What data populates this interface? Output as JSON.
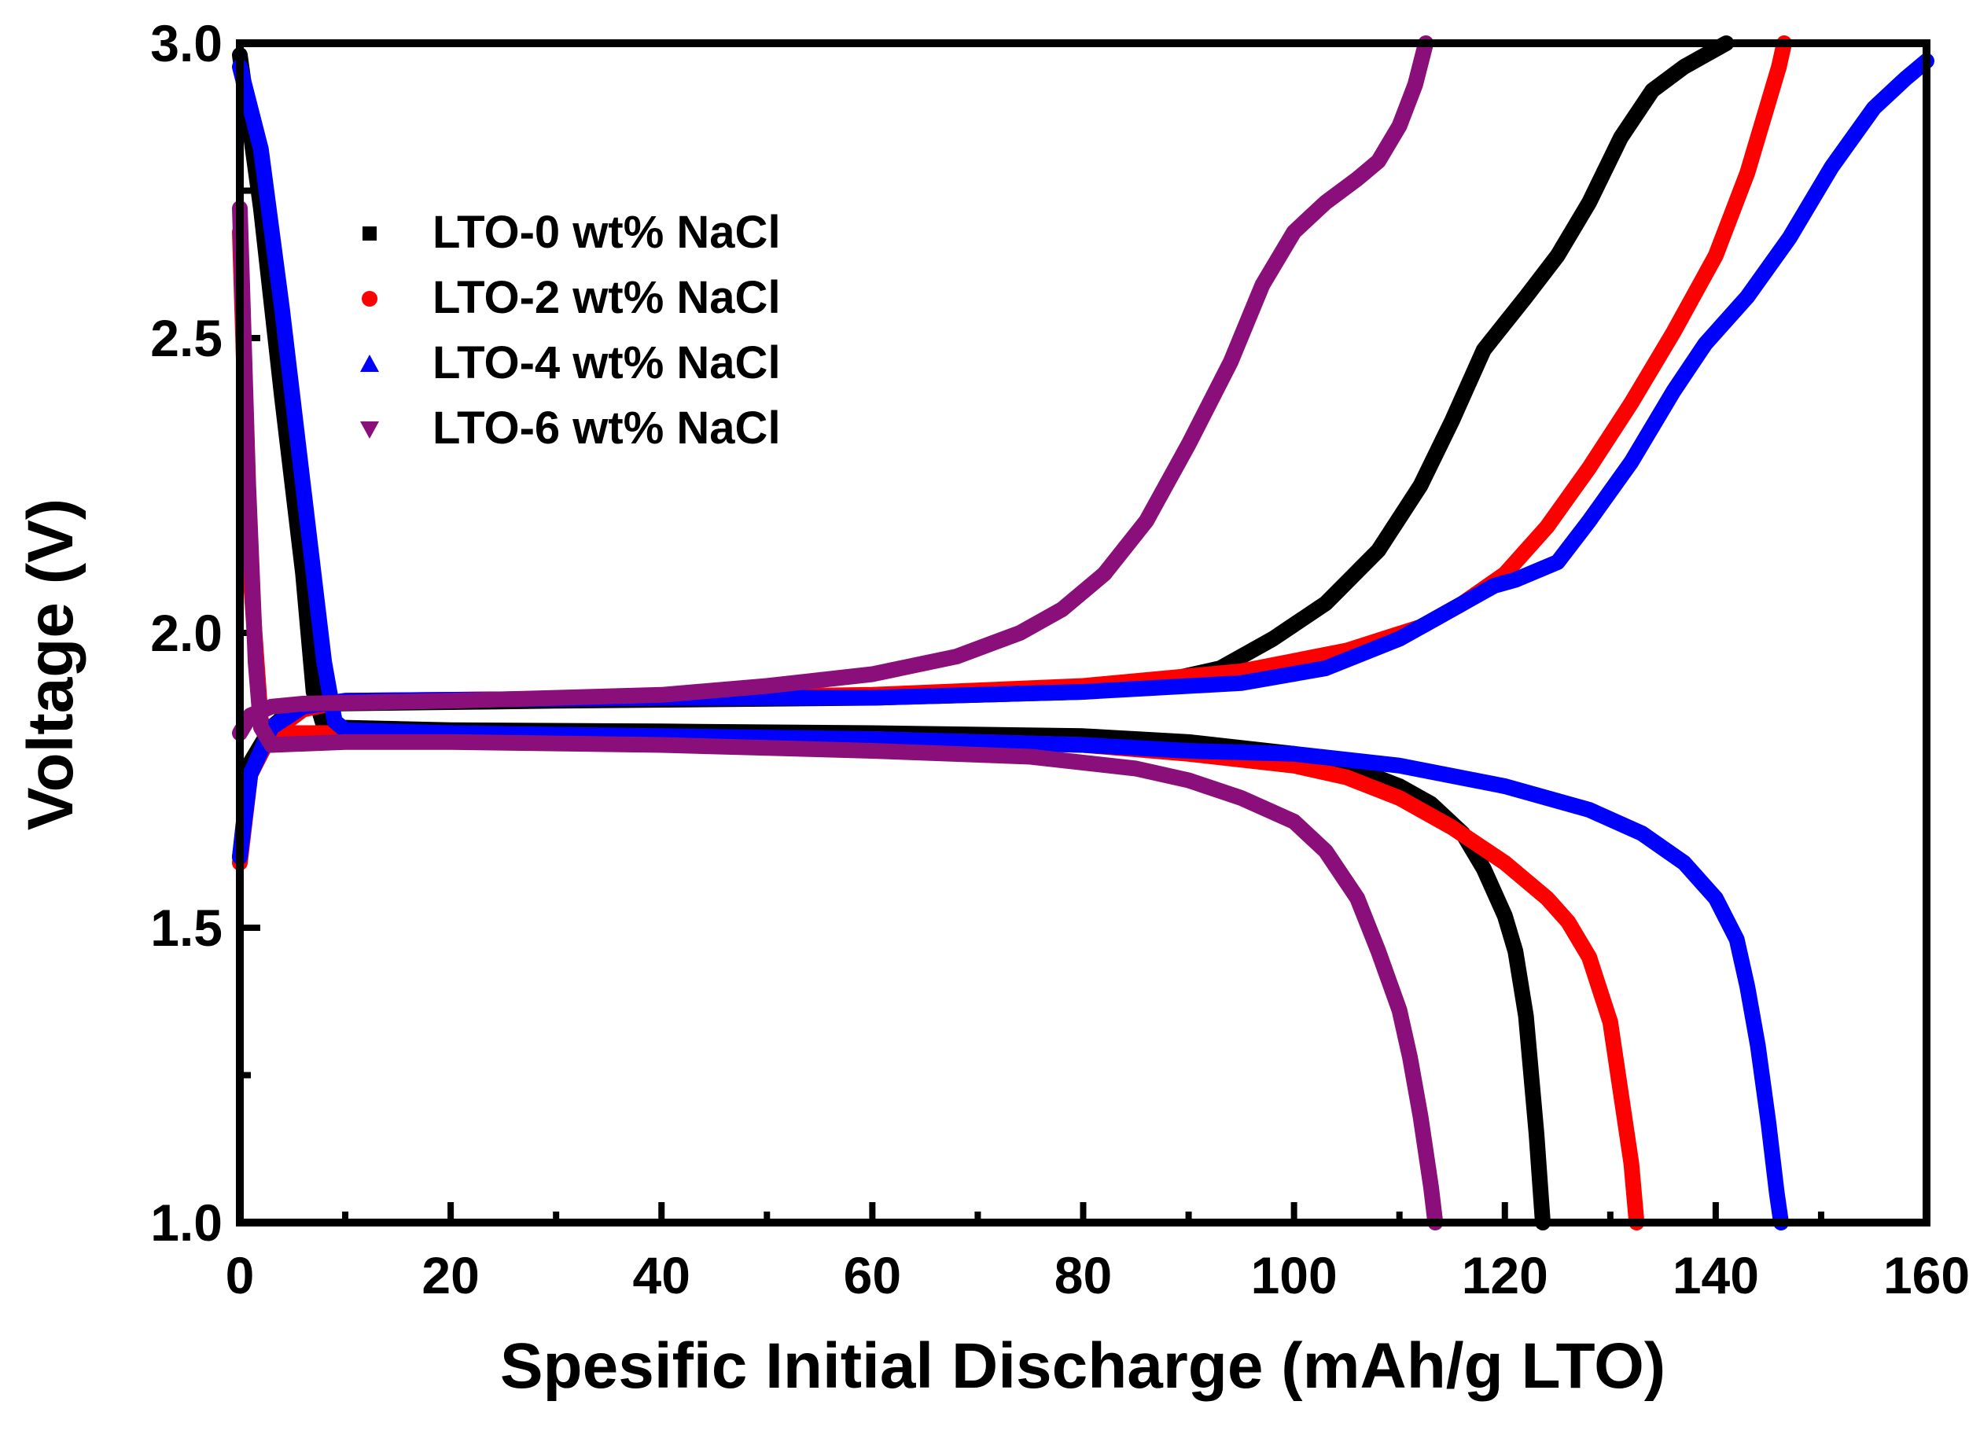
{
  "chart_data": {
    "type": "line",
    "xlabel": "Spesific Initial Discharge (mAh/g LTO)",
    "ylabel": "Voltage (V)",
    "xlim": [
      0,
      160
    ],
    "ylim": [
      1.0,
      3.0
    ],
    "x_ticks": [
      "0",
      "20",
      "40",
      "60",
      "80",
      "100",
      "120",
      "140",
      "160"
    ],
    "y_ticks": [
      "1.0",
      "1.5",
      "2.0",
      "2.5",
      "3.0"
    ],
    "legend_position": "top-left",
    "series": [
      {
        "name": "LTO-0 wt% NaCl",
        "color": "#000000",
        "marker": "square",
        "discharge": [
          [
            0,
            2.98
          ],
          [
            2,
            2.72
          ],
          [
            4,
            2.4
          ],
          [
            6,
            2.1
          ],
          [
            7,
            1.9
          ],
          [
            8,
            1.84
          ],
          [
            20,
            1.835
          ],
          [
            40,
            1.833
          ],
          [
            60,
            1.83
          ],
          [
            80,
            1.825
          ],
          [
            90,
            1.815
          ],
          [
            100,
            1.795
          ],
          [
            105,
            1.775
          ],
          [
            110,
            1.74
          ],
          [
            113,
            1.71
          ],
          [
            116,
            1.66
          ],
          [
            118,
            1.6
          ],
          [
            120,
            1.52
          ],
          [
            121,
            1.46
          ],
          [
            122,
            1.35
          ],
          [
            123,
            1.15
          ],
          [
            123.6,
            1.0
          ]
        ],
        "charge": [
          [
            0,
            1.62
          ],
          [
            1,
            1.78
          ],
          [
            3,
            1.84
          ],
          [
            5,
            1.87
          ],
          [
            8,
            1.88
          ],
          [
            30,
            1.885
          ],
          [
            60,
            1.89
          ],
          [
            80,
            1.9
          ],
          [
            88,
            1.92
          ],
          [
            93,
            1.94
          ],
          [
            98,
            1.99
          ],
          [
            103,
            2.05
          ],
          [
            108,
            2.14
          ],
          [
            112,
            2.25
          ],
          [
            115,
            2.36
          ],
          [
            118,
            2.48
          ],
          [
            122,
            2.57
          ],
          [
            125,
            2.64
          ],
          [
            128,
            2.73
          ],
          [
            131,
            2.84
          ],
          [
            134,
            2.92
          ],
          [
            137,
            2.96
          ],
          [
            140,
            2.99
          ],
          [
            141,
            3.0
          ]
        ]
      },
      {
        "name": "LTO-2 wt% NaCl",
        "color": "#ff0000",
        "marker": "circle",
        "discharge": [
          [
            0,
            2.68
          ],
          [
            1,
            2.1
          ],
          [
            2,
            1.85
          ],
          [
            3,
            1.83
          ],
          [
            10,
            1.83
          ],
          [
            30,
            1.825
          ],
          [
            60,
            1.82
          ],
          [
            80,
            1.81
          ],
          [
            90,
            1.795
          ],
          [
            100,
            1.775
          ],
          [
            105,
            1.755
          ],
          [
            110,
            1.72
          ],
          [
            115,
            1.67
          ],
          [
            120,
            1.61
          ],
          [
            124,
            1.55
          ],
          [
            126,
            1.51
          ],
          [
            128,
            1.45
          ],
          [
            130,
            1.34
          ],
          [
            131,
            1.22
          ],
          [
            132,
            1.1
          ],
          [
            132.5,
            1.0
          ]
        ],
        "charge": [
          [
            0,
            1.61
          ],
          [
            1,
            1.76
          ],
          [
            3,
            1.83
          ],
          [
            6,
            1.87
          ],
          [
            10,
            1.885
          ],
          [
            40,
            1.89
          ],
          [
            60,
            1.895
          ],
          [
            80,
            1.91
          ],
          [
            95,
            1.935
          ],
          [
            105,
            1.97
          ],
          [
            112,
            2.01
          ],
          [
            116,
            2.05
          ],
          [
            120,
            2.1
          ],
          [
            124,
            2.18
          ],
          [
            128,
            2.28
          ],
          [
            132,
            2.39
          ],
          [
            136,
            2.51
          ],
          [
            140,
            2.64
          ],
          [
            143,
            2.78
          ],
          [
            145,
            2.9
          ],
          [
            146,
            2.96
          ],
          [
            146.5,
            3.0
          ]
        ]
      },
      {
        "name": "LTO-4 wt% NaCl",
        "color": "#0000ff",
        "marker": "triangle-up",
        "discharge": [
          [
            0,
            2.96
          ],
          [
            2,
            2.82
          ],
          [
            4,
            2.55
          ],
          [
            6,
            2.25
          ],
          [
            8,
            1.95
          ],
          [
            9,
            1.85
          ],
          [
            10,
            1.835
          ],
          [
            20,
            1.83
          ],
          [
            40,
            1.825
          ],
          [
            60,
            1.82
          ],
          [
            80,
            1.81
          ],
          [
            90,
            1.8
          ],
          [
            100,
            1.795
          ],
          [
            110,
            1.775
          ],
          [
            120,
            1.74
          ],
          [
            128,
            1.7
          ],
          [
            133,
            1.66
          ],
          [
            137,
            1.61
          ],
          [
            140,
            1.55
          ],
          [
            142,
            1.48
          ],
          [
            143,
            1.4
          ],
          [
            144,
            1.3
          ],
          [
            145,
            1.17
          ],
          [
            145.8,
            1.05
          ],
          [
            146.2,
            1.0
          ]
        ],
        "charge": [
          [
            0,
            1.62
          ],
          [
            1,
            1.76
          ],
          [
            3,
            1.84
          ],
          [
            6,
            1.875
          ],
          [
            10,
            1.885
          ],
          [
            40,
            1.89
          ],
          [
            60,
            1.89
          ],
          [
            80,
            1.9
          ],
          [
            95,
            1.915
          ],
          [
            103,
            1.94
          ],
          [
            110,
            1.99
          ],
          [
            115,
            2.04
          ],
          [
            119,
            2.08
          ],
          [
            121,
            2.09
          ],
          [
            125,
            2.12
          ],
          [
            128,
            2.19
          ],
          [
            132,
            2.29
          ],
          [
            136,
            2.41
          ],
          [
            139,
            2.49
          ],
          [
            143,
            2.57
          ],
          [
            147,
            2.67
          ],
          [
            151,
            2.79
          ],
          [
            155,
            2.89
          ],
          [
            158,
            2.94
          ],
          [
            160,
            2.97
          ]
        ]
      },
      {
        "name": "LTO-6 wt% NaCl",
        "color": "#8b0f7a",
        "marker": "triangle-down",
        "discharge": [
          [
            0,
            2.72
          ],
          [
            0.8,
            2.25
          ],
          [
            1.5,
            1.95
          ],
          [
            2,
            1.84
          ],
          [
            3,
            1.81
          ],
          [
            10,
            1.815
          ],
          [
            20,
            1.815
          ],
          [
            40,
            1.81
          ],
          [
            60,
            1.8
          ],
          [
            75,
            1.79
          ],
          [
            85,
            1.77
          ],
          [
            90,
            1.75
          ],
          [
            95,
            1.72
          ],
          [
            100,
            1.68
          ],
          [
            103,
            1.63
          ],
          [
            106,
            1.55
          ],
          [
            108,
            1.46
          ],
          [
            110,
            1.36
          ],
          [
            111,
            1.28
          ],
          [
            112,
            1.18
          ],
          [
            113,
            1.06
          ],
          [
            113.4,
            1.0
          ]
        ],
        "charge": [
          [
            0,
            1.83
          ],
          [
            1,
            1.86
          ],
          [
            3,
            1.875
          ],
          [
            6,
            1.88
          ],
          [
            20,
            1.885
          ],
          [
            40,
            1.895
          ],
          [
            50,
            1.91
          ],
          [
            60,
            1.93
          ],
          [
            68,
            1.96
          ],
          [
            74,
            2.0
          ],
          [
            78,
            2.04
          ],
          [
            82,
            2.1
          ],
          [
            86,
            2.19
          ],
          [
            90,
            2.32
          ],
          [
            94,
            2.46
          ],
          [
            97,
            2.59
          ],
          [
            100,
            2.68
          ],
          [
            103,
            2.73
          ],
          [
            106,
            2.77
          ],
          [
            108,
            2.8
          ],
          [
            110,
            2.86
          ],
          [
            111.5,
            2.93
          ],
          [
            112.5,
            3.0
          ]
        ]
      }
    ]
  }
}
